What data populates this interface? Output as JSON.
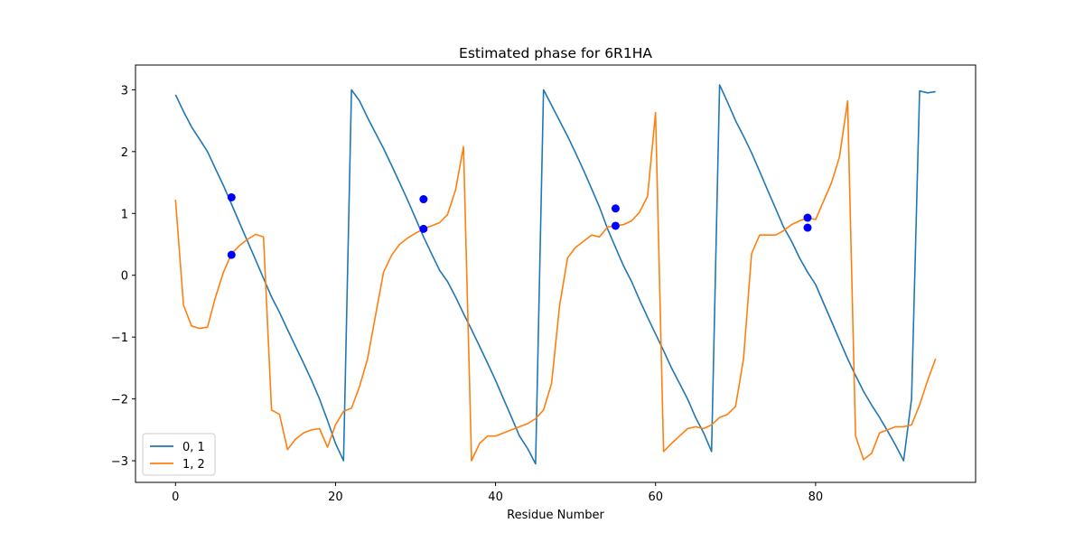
{
  "chart_data": {
    "type": "line",
    "title": "Estimated phase for 6R1HA",
    "xlabel": "Residue Number",
    "ylabel": "",
    "xlim": [
      -5,
      100
    ],
    "ylim": [
      -3.35,
      3.4
    ],
    "xticks": [
      0,
      20,
      40,
      60,
      80
    ],
    "yticks": [
      3,
      2,
      1,
      0,
      -1,
      -2,
      -3
    ],
    "ytick_labels": [
      "3",
      "2",
      "1",
      "0",
      "−1",
      "−2",
      "−3"
    ],
    "grid": false,
    "legend_position": "lower-left",
    "series": [
      {
        "name": "0, 1",
        "color": "#1f77b4",
        "x": [
          0,
          1,
          2,
          3,
          4,
          5,
          6,
          7,
          8,
          9,
          10,
          11,
          12,
          13,
          14,
          15,
          16,
          17,
          18,
          19,
          20,
          21,
          22,
          23,
          24,
          25,
          26,
          27,
          28,
          29,
          30,
          31,
          32,
          33,
          34,
          35,
          36,
          37,
          38,
          39,
          40,
          41,
          42,
          43,
          44,
          45,
          46,
          47,
          48,
          49,
          50,
          51,
          52,
          53,
          54,
          55,
          56,
          57,
          58,
          59,
          60,
          61,
          62,
          63,
          64,
          65,
          66,
          67,
          68,
          69,
          70,
          71,
          72,
          73,
          74,
          75,
          76,
          77,
          78,
          79,
          80,
          81,
          82,
          83,
          84,
          85,
          86,
          87,
          88,
          89,
          90,
          91,
          92,
          93,
          94,
          95
        ],
        "y": [
          2.92,
          2.65,
          2.4,
          2.2,
          2.0,
          1.72,
          1.45,
          1.15,
          0.85,
          0.55,
          0.25,
          -0.05,
          -0.35,
          -0.6,
          -0.88,
          -1.15,
          -1.42,
          -1.7,
          -2.0,
          -2.35,
          -2.72,
          -3.0,
          3.0,
          2.82,
          2.55,
          2.3,
          2.05,
          1.78,
          1.5,
          1.22,
          0.92,
          0.62,
          0.35,
          0.08,
          -0.1,
          -0.35,
          -0.62,
          -0.88,
          -1.15,
          -1.42,
          -1.7,
          -2.0,
          -2.3,
          -2.6,
          -2.8,
          -3.05,
          3.0,
          2.75,
          2.5,
          2.25,
          1.98,
          1.7,
          1.4,
          1.1,
          0.75,
          0.45,
          0.15,
          -0.1,
          -0.4,
          -0.68,
          -0.95,
          -1.22,
          -1.5,
          -1.75,
          -2.0,
          -2.3,
          -2.55,
          -2.85,
          3.08,
          2.8,
          2.5,
          2.25,
          1.98,
          1.68,
          1.38,
          1.08,
          0.78,
          0.55,
          0.28,
          0.05,
          -0.15,
          -0.45,
          -0.75,
          -1.05,
          -1.35,
          -1.62,
          -1.88,
          -2.1,
          -2.3,
          -2.52,
          -2.75,
          -3.0,
          -2.0,
          2.98,
          2.95,
          2.97
        ],
        "segments_note": "line wraps from -pi to +pi"
      },
      {
        "name": "1, 2",
        "color": "#ff7f0e",
        "x": [
          0,
          1,
          2,
          3,
          4,
          5,
          6,
          7,
          8,
          9,
          10,
          11,
          12,
          13,
          14,
          15,
          16,
          17,
          18,
          19,
          20,
          21,
          22,
          23,
          24,
          25,
          26,
          27,
          28,
          29,
          30,
          31,
          32,
          33,
          34,
          35,
          36,
          37,
          38,
          39,
          40,
          41,
          42,
          43,
          44,
          45,
          46,
          47,
          48,
          49,
          50,
          51,
          52,
          53,
          54,
          55,
          56,
          57,
          58,
          59,
          60,
          61,
          62,
          63,
          64,
          65,
          66,
          67,
          68,
          69,
          70,
          71,
          72,
          73,
          74,
          75,
          76,
          77,
          78,
          79,
          80,
          81,
          82,
          83,
          84,
          85,
          86,
          87,
          88,
          89,
          90,
          91,
          92,
          93,
          94,
          95
        ],
        "y": [
          1.22,
          -0.48,
          -0.82,
          -0.86,
          -0.84,
          -0.35,
          0.05,
          0.35,
          0.48,
          0.58,
          0.66,
          0.62,
          -2.18,
          -2.25,
          -2.82,
          -2.65,
          -2.55,
          -2.5,
          -2.48,
          -2.78,
          -2.42,
          -2.2,
          -2.15,
          -1.8,
          -1.35,
          -0.65,
          0.05,
          0.32,
          0.5,
          0.6,
          0.68,
          0.75,
          0.8,
          0.85,
          0.98,
          1.38,
          2.08,
          -3.0,
          -2.72,
          -2.6,
          -2.6,
          -2.55,
          -2.5,
          -2.45,
          -2.4,
          -2.32,
          -2.18,
          -1.75,
          -0.5,
          0.28,
          0.45,
          0.55,
          0.65,
          0.62,
          0.78,
          0.8,
          0.82,
          0.88,
          1.02,
          1.28,
          2.63,
          -2.85,
          -2.72,
          -2.6,
          -2.48,
          -2.45,
          -2.48,
          -2.42,
          -2.3,
          -2.25,
          -2.12,
          -1.35,
          0.35,
          0.65,
          0.65,
          0.65,
          0.72,
          0.82,
          0.88,
          0.93,
          0.9,
          1.2,
          1.5,
          1.92,
          2.82,
          -2.6,
          -2.98,
          -2.88,
          -2.55,
          -2.5,
          -2.45,
          -2.45,
          -2.42,
          -2.1,
          -1.7,
          -1.35
        ]
      },
      {
        "name": "",
        "color": "#0000ff",
        "type": "scatter",
        "x": [
          7,
          7,
          31,
          31,
          55,
          55,
          79,
          79
        ],
        "y": [
          1.26,
          0.33,
          1.23,
          0.75,
          1.08,
          0.8,
          0.93,
          0.77
        ]
      }
    ]
  }
}
